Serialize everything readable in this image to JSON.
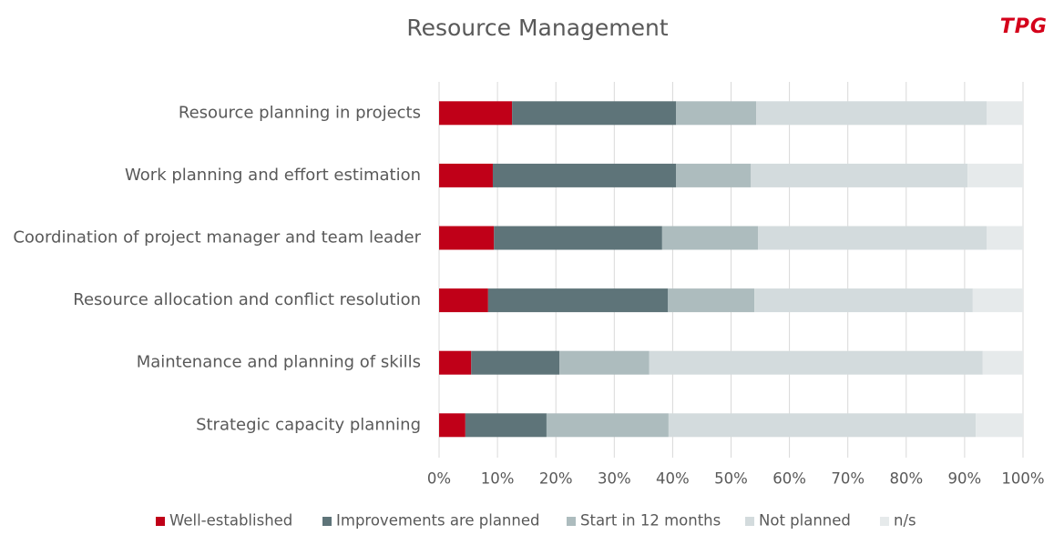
{
  "logo": "TPG",
  "chart_data": {
    "type": "stacked-bar-horizontal",
    "title": "Resource Management",
    "categories": [
      "Resource planning in projects",
      "Work planning and effort estimation",
      "Coordination of project manager and team leader",
      "Resource allocation and conflict resolution",
      "Maintenance and planning of skills",
      "Strategic capacity planning"
    ],
    "series": [
      {
        "name": "Well-established",
        "color": "#c00018",
        "values": [
          12.5,
          9.2,
          9.4,
          8.4,
          5.5,
          4.5
        ]
      },
      {
        "name": "Improvements are planned",
        "color": "#5e7479",
        "values": [
          28.1,
          31.4,
          28.8,
          30.8,
          15.1,
          13.9
        ]
      },
      {
        "name": "Start in 12 months",
        "color": "#adbcbe",
        "values": [
          13.7,
          12.8,
          16.4,
          14.8,
          15.4,
          20.9
        ]
      },
      {
        "name": "Not planned",
        "color": "#d3dbdd",
        "values": [
          39.5,
          37.1,
          39.2,
          37.4,
          57.1,
          52.6
        ]
      },
      {
        "name": "n/s",
        "color": "#e6eaeb",
        "values": [
          6.2,
          9.5,
          6.2,
          8.6,
          6.9,
          8.1
        ]
      }
    ],
    "xlim": [
      0,
      100
    ],
    "xticks": [
      {
        "value": 0,
        "label": "0%"
      },
      {
        "value": 10,
        "label": "10%"
      },
      {
        "value": 20,
        "label": "20%"
      },
      {
        "value": 30,
        "label": "30%"
      },
      {
        "value": 40,
        "label": "40%"
      },
      {
        "value": 50,
        "label": "50%"
      },
      {
        "value": 60,
        "label": "60%"
      },
      {
        "value": 70,
        "label": "70%"
      },
      {
        "value": 80,
        "label": "80%"
      },
      {
        "value": 90,
        "label": "90%"
      },
      {
        "value": 100,
        "label": "100%"
      }
    ],
    "grid": true,
    "legend": "bottom"
  }
}
